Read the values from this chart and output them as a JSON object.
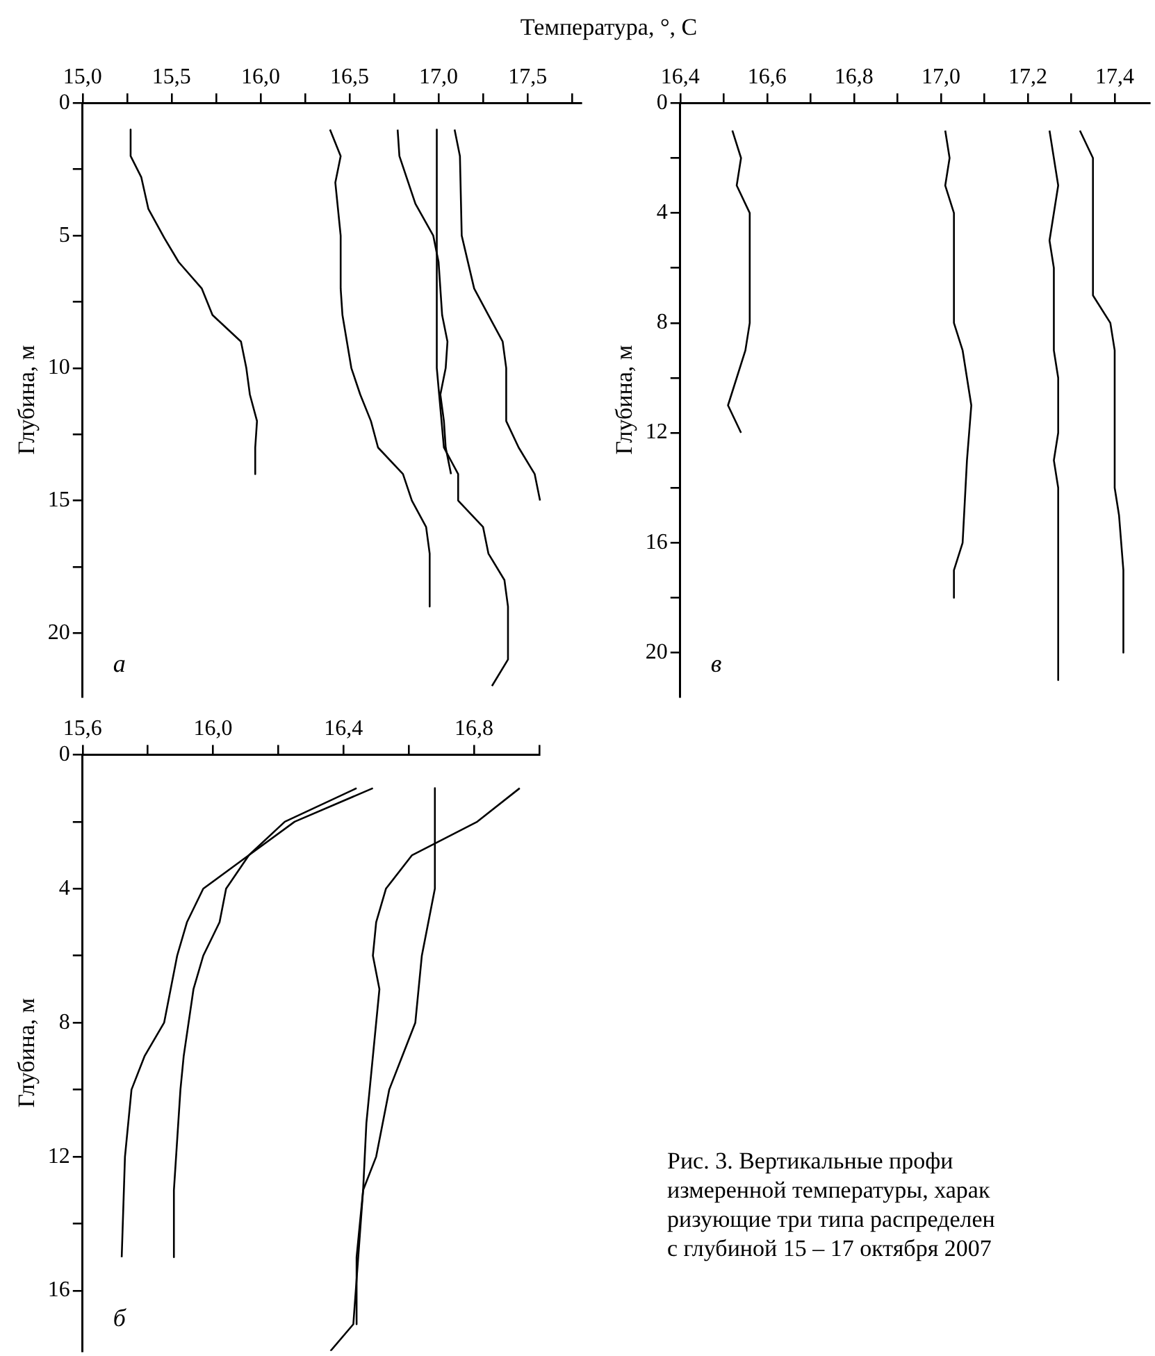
{
  "chart_data": [
    {
      "type": "line",
      "xlabel": "Температура, °, С",
      "ylabel": "Глубина, м",
      "marker": "none",
      "line_style": "solid",
      "grid": false,
      "legend": false,
      "xlim": [
        15,
        17.8
      ],
      "xticks": [
        {
          "value": 15,
          "label": "15,0"
        },
        {
          "value": 15.25,
          "label": null
        },
        {
          "value": 15.5,
          "label": "15,5"
        },
        {
          "value": 15.75,
          "label": null
        },
        {
          "value": 16,
          "label": "16,0"
        },
        {
          "value": 16.25,
          "label": null
        },
        {
          "value": 16.5,
          "label": "16,5"
        },
        {
          "value": 16.75,
          "label": null
        },
        {
          "value": 17,
          "label": "17,0"
        },
        {
          "value": 17.25,
          "label": null
        },
        {
          "value": 17.5,
          "label": "17,5"
        },
        {
          "value": 17.75,
          "label": null
        }
      ],
      "ylim": [
        22.4,
        0
      ],
      "yticks": [
        0,
        {
          "value": 2.5,
          "label": null
        },
        5,
        {
          "value": 7.5,
          "label": null
        },
        10,
        {
          "value": 12.5,
          "label": null
        },
        15,
        {
          "value": 17.5,
          "label": null
        },
        20
      ],
      "annotations": [
        "а"
      ],
      "series": [
        {
          "color": "#000000",
          "x": [
            15.27,
            15.27,
            15.33,
            15.37,
            15.46,
            15.54,
            15.67,
            15.73,
            15.89,
            15.92,
            15.94,
            15.98,
            15.97,
            15.97
          ],
          "values": [
            1,
            2,
            2.8,
            4,
            5.1,
            6,
            7,
            8,
            9,
            10,
            11,
            12,
            13,
            14
          ]
        },
        {
          "color": "#000000",
          "x": [
            16.39,
            16.45,
            16.42,
            16.45,
            16.45,
            16.46,
            16.51,
            16.56,
            16.62,
            16.66,
            16.8,
            16.85,
            16.93,
            16.95,
            16.95
          ],
          "values": [
            1,
            2,
            3,
            5,
            7,
            8,
            10,
            11,
            12,
            13,
            14,
            15,
            16,
            17,
            19
          ]
        },
        {
          "color": "#000000",
          "x": [
            16.77,
            16.78,
            16.87,
            16.97,
            17.0,
            17.02,
            17.05,
            17.04,
            17.01,
            17.03,
            17.04,
            17.07
          ],
          "values": [
            1,
            2,
            3.8,
            5,
            6,
            8,
            9,
            10,
            11,
            12,
            13,
            14
          ]
        },
        {
          "color": "#000000",
          "x": [
            16.99,
            16.99,
            17.03,
            17.11,
            17.11,
            17.25,
            17.28,
            17.37,
            17.39,
            17.39,
            17.3
          ],
          "values": [
            1,
            10,
            13,
            14,
            15,
            16,
            17,
            18,
            19,
            21,
            22
          ]
        },
        {
          "color": "#000000",
          "x": [
            17.09,
            17.12,
            17.13,
            17.2,
            17.28,
            17.36,
            17.38,
            17.38,
            17.45,
            17.54,
            17.57
          ],
          "values": [
            1,
            2,
            5,
            7,
            8,
            9,
            10,
            12,
            13,
            14,
            15
          ]
        }
      ]
    },
    {
      "type": "line",
      "ylabel": "Глубина, м",
      "marker": "none",
      "line_style": "solid",
      "grid": false,
      "legend": false,
      "xlim": [
        16.4,
        17.48
      ],
      "xticks": [
        {
          "value": 16.4,
          "label": "16,4"
        },
        {
          "value": 16.5,
          "label": null
        },
        {
          "value": 16.6,
          "label": "16,6"
        },
        {
          "value": 16.7,
          "label": null
        },
        {
          "value": 16.8,
          "label": "16,8"
        },
        {
          "value": 16.9,
          "label": null
        },
        {
          "value": 17.0,
          "label": "17,0"
        },
        {
          "value": 17.1,
          "label": null
        },
        {
          "value": 17.2,
          "label": "17,2"
        },
        {
          "value": 17.3,
          "label": null
        },
        {
          "value": 17.4,
          "label": "17,4"
        }
      ],
      "ylim": [
        21.6,
        0
      ],
      "yticks": [
        0,
        {
          "value": 2,
          "label": null
        },
        4,
        {
          "value": 6,
          "label": null
        },
        8,
        {
          "value": 10,
          "label": null
        },
        12,
        {
          "value": 14,
          "label": null
        },
        16,
        {
          "value": 18,
          "label": null
        },
        20
      ],
      "annotations": [
        "в"
      ],
      "series": [
        {
          "color": "#000000",
          "x": [
            16.52,
            16.54,
            16.53,
            16.56,
            16.56,
            16.55,
            16.51,
            16.54
          ],
          "values": [
            1,
            2,
            3,
            4,
            8,
            9,
            11,
            12
          ]
        },
        {
          "color": "#000000",
          "x": [
            17.01,
            17.02,
            17.01,
            17.03,
            17.03,
            17.05,
            17.07,
            17.06,
            17.05,
            17.03,
            17.03
          ],
          "values": [
            1,
            2,
            3,
            4,
            8,
            9,
            11,
            13,
            16,
            17,
            18
          ]
        },
        {
          "color": "#000000",
          "x": [
            17.25,
            17.27,
            17.25,
            17.26,
            17.26,
            17.27,
            17.27,
            17.26,
            17.27,
            17.27
          ],
          "values": [
            1,
            3,
            5,
            6,
            9,
            10,
            12,
            13,
            14,
            21
          ]
        },
        {
          "color": "#000000",
          "x": [
            17.32,
            17.35,
            17.35,
            17.39,
            17.4,
            17.4,
            17.41,
            17.42,
            17.42
          ],
          "values": [
            1,
            2,
            7,
            8,
            9,
            14,
            15,
            17,
            20
          ]
        }
      ]
    },
    {
      "type": "line",
      "ylabel": "Глубина, м",
      "marker": "none",
      "line_style": "solid",
      "grid": false,
      "legend": false,
      "xlim": [
        15.6,
        17.0
      ],
      "xticks": [
        {
          "value": 15.6,
          "label": "15,6"
        },
        {
          "value": 15.8,
          "label": null
        },
        {
          "value": 16.0,
          "label": "16,0"
        },
        {
          "value": 16.2,
          "label": null
        },
        {
          "value": 16.4,
          "label": "16,4"
        },
        {
          "value": 16.6,
          "label": null
        },
        {
          "value": 16.8,
          "label": "16,8"
        },
        {
          "value": 17.0,
          "label": null
        }
      ],
      "ylim": [
        17.8,
        0
      ],
      "yticks": [
        0,
        {
          "value": 2,
          "label": null
        },
        4,
        {
          "value": 6,
          "label": null
        },
        8,
        {
          "value": 10,
          "label": null
        },
        12,
        {
          "value": 14,
          "label": null
        },
        16
      ],
      "annotations": [
        "б",
        "Рис. 3. Вертикальные профи",
        "измеренной температуры, харак",
        "ризующие три типа распределен",
        "с глубиной 15 – 17 октября 2007"
      ],
      "series": [
        {
          "color": "#000000",
          "x": [
            16.44,
            16.22,
            16.11,
            15.97,
            15.92,
            15.89,
            15.85,
            15.79,
            15.75,
            15.73,
            15.72
          ],
          "values": [
            1,
            2,
            3,
            4,
            5,
            6,
            8,
            9,
            10,
            12,
            15
          ]
        },
        {
          "color": "#000000",
          "x": [
            16.49,
            16.25,
            16.11,
            16.04,
            16.02,
            15.97,
            15.94,
            15.91,
            15.9,
            15.88,
            15.88
          ],
          "values": [
            1,
            2,
            3,
            4,
            5,
            6,
            7,
            9,
            10,
            13,
            15
          ]
        },
        {
          "color": "#000000",
          "x": [
            16.68,
            16.68,
            16.64,
            16.62,
            16.54,
            16.5,
            16.46,
            16.44,
            16.44
          ],
          "values": [
            1,
            4,
            6,
            8,
            10,
            12,
            13,
            15,
            17
          ]
        },
        {
          "color": "#000000",
          "x": [
            16.94,
            16.81,
            16.61,
            16.53,
            16.5,
            16.49,
            16.51,
            16.47,
            16.46,
            16.43,
            16.36
          ],
          "values": [
            1,
            2,
            3,
            4,
            5,
            6,
            7,
            11,
            13,
            17,
            17.8
          ]
        }
      ]
    }
  ]
}
